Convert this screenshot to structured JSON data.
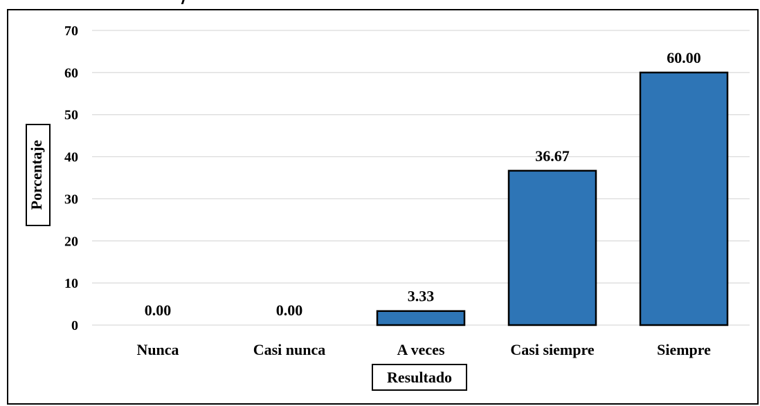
{
  "chart_data": {
    "type": "bar",
    "title": "",
    "xlabel": "Resultado",
    "ylabel": "Porcentaje",
    "categories": [
      "Nunca",
      "Casi nunca",
      "A veces",
      "Casi siempre",
      "Siempre"
    ],
    "series": [
      {
        "values": [
          0.0,
          0.0,
          3.33,
          36.67,
          60.0
        ]
      }
    ],
    "data_labels": [
      "0.00",
      "0.00",
      "3.33",
      "36.67",
      "60.00"
    ],
    "ylim": [
      0,
      70
    ],
    "yticks": [
      0,
      10,
      20,
      30,
      40,
      50,
      60,
      70
    ],
    "grid": true,
    "legend": "none",
    "colors": {
      "bar_fill": "#2e75b6",
      "bar_stroke": "#000000",
      "grid": "#d9d9d9",
      "text": "#000000"
    }
  }
}
